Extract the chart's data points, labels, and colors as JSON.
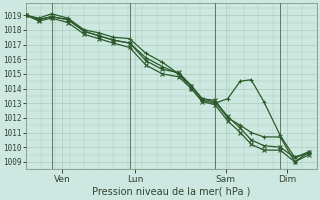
{
  "bg_color": "#cce8e0",
  "grid_color": "#aaccbb",
  "line_color": "#2d5a2d",
  "title": "Pression niveau de la mer( hPa )",
  "ylim": [
    1008.5,
    1019.8
  ],
  "yticks": [
    1009,
    1010,
    1011,
    1012,
    1013,
    1014,
    1015,
    1016,
    1017,
    1018,
    1019
  ],
  "xlim": [
    0,
    8.0
  ],
  "xtick_positions": [
    1.0,
    3.0,
    5.5,
    7.2
  ],
  "xtick_labels": [
    "Ven",
    "Lun",
    "Sam",
    "Dim"
  ],
  "xvlines": [
    0.7,
    2.85,
    5.2,
    7.0
  ],
  "line1_x": [
    0.0,
    0.35,
    0.7,
    1.15,
    1.6,
    2.0,
    2.4,
    2.85,
    3.3,
    3.75,
    4.2,
    4.55,
    4.85,
    5.2,
    5.55,
    5.9,
    6.2,
    6.55,
    7.0,
    7.4,
    7.8
  ],
  "line1_y": [
    1019.0,
    1018.8,
    1019.1,
    1018.8,
    1018.0,
    1017.8,
    1017.5,
    1017.4,
    1016.4,
    1015.8,
    1015.0,
    1014.0,
    1013.2,
    1013.0,
    1013.3,
    1014.5,
    1014.6,
    1013.1,
    1010.8,
    1009.3,
    1009.6
  ],
  "line2_x": [
    0.0,
    0.35,
    0.7,
    1.15,
    1.6,
    2.0,
    2.4,
    2.85,
    3.3,
    3.75,
    4.2,
    4.55,
    4.85,
    5.2,
    5.55,
    5.9,
    6.2,
    6.55,
    7.0,
    7.4,
    7.8
  ],
  "line2_y": [
    1019.0,
    1018.7,
    1018.9,
    1018.7,
    1017.9,
    1017.6,
    1017.3,
    1017.1,
    1016.1,
    1015.5,
    1015.0,
    1014.2,
    1013.3,
    1013.1,
    1012.0,
    1011.5,
    1011.0,
    1010.7,
    1010.7,
    1009.0,
    1009.7
  ],
  "line3_x": [
    0.0,
    0.35,
    0.7,
    1.15,
    1.6,
    2.0,
    2.4,
    2.85,
    3.3,
    3.75,
    4.2,
    4.55,
    4.85,
    5.2,
    5.55,
    5.9,
    6.2,
    6.55,
    7.0,
    7.4,
    7.8
  ],
  "line3_y": [
    1019.0,
    1018.7,
    1018.9,
    1018.7,
    1017.9,
    1017.6,
    1017.3,
    1017.1,
    1015.9,
    1015.3,
    1015.1,
    1014.2,
    1013.3,
    1013.2,
    1012.1,
    1011.3,
    1010.5,
    1010.1,
    1010.0,
    1009.3,
    1009.7
  ],
  "line4_x": [
    0.0,
    0.35,
    0.7,
    1.15,
    1.6,
    2.0,
    2.4,
    2.85,
    3.3,
    3.75,
    4.2,
    4.55,
    4.85,
    5.2,
    5.55,
    5.9,
    6.2,
    6.55,
    7.0,
    7.4,
    7.8
  ],
  "line4_y": [
    1019.0,
    1018.6,
    1018.8,
    1018.5,
    1017.7,
    1017.4,
    1017.1,
    1016.8,
    1015.6,
    1015.0,
    1014.8,
    1014.0,
    1013.1,
    1012.9,
    1011.8,
    1011.0,
    1010.2,
    1009.8,
    1009.8,
    1009.0,
    1009.5
  ]
}
